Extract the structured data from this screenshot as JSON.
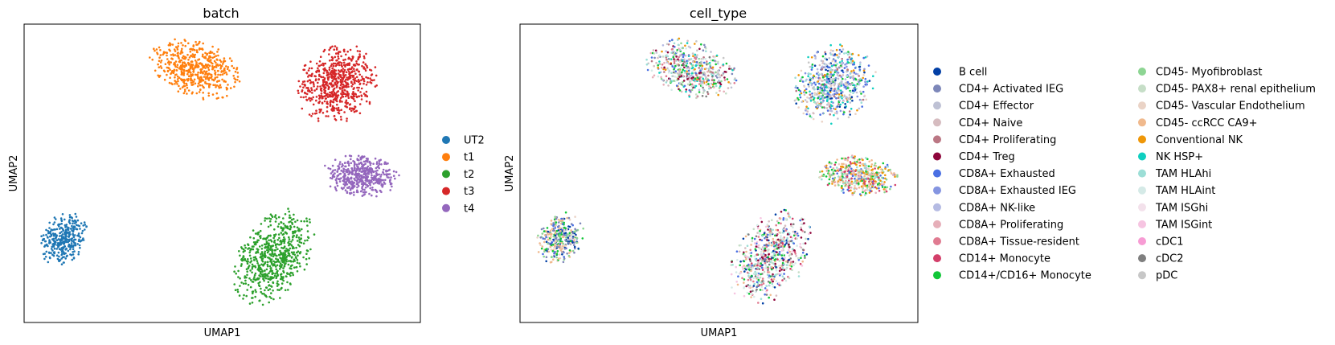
{
  "chart_data": [
    {
      "type": "scatter",
      "title": "batch",
      "xlabel": "UMAP1",
      "ylabel": "UMAP2",
      "xlim": [
        0,
        100
      ],
      "ylim": [
        0,
        100
      ],
      "grid": false,
      "ticks": false,
      "legend_position": "right",
      "series": [
        {
          "name": "UT2",
          "color": "#1f77b4",
          "clusters": [
            {
              "cx": 10,
              "cy": 28,
              "rx": 5,
              "ry": 8,
              "angle": -15,
              "n": 330
            }
          ]
        },
        {
          "name": "t1",
          "color": "#ff7f0e",
          "clusters": [
            {
              "cx": 43,
              "cy": 85,
              "rx": 11,
              "ry": 8,
              "angle": -35,
              "n": 520
            }
          ]
        },
        {
          "name": "t2",
          "color": "#2ca02c",
          "clusters": [
            {
              "cx": 63,
              "cy": 22,
              "rx": 8,
              "ry": 15,
              "angle": -20,
              "n": 650
            }
          ]
        },
        {
          "name": "t3",
          "color": "#d62728",
          "clusters": [
            {
              "cx": 79,
              "cy": 80,
              "rx": 9,
              "ry": 12,
              "angle": -15,
              "n": 650
            }
          ]
        },
        {
          "name": "t4",
          "color": "#9467bd",
          "clusters": [
            {
              "cx": 85,
              "cy": 49,
              "rx": 9,
              "ry": 6,
              "angle": -10,
              "n": 480
            }
          ]
        }
      ]
    },
    {
      "type": "scatter",
      "title": "cell_type",
      "xlabel": "UMAP1",
      "ylabel": "UMAP2",
      "xlim": [
        0,
        100
      ],
      "ylim": [
        0,
        100
      ],
      "grid": false,
      "ticks": false,
      "legend_position": "right",
      "legend_columns": 2,
      "clusters": [
        {
          "cx": 43,
          "cy": 85,
          "rx": 11,
          "ry": 8,
          "angle": -35,
          "n": 520,
          "mix": [
            "CD4+ Activated IEG",
            "CD4+ Effector",
            "CD4+ Naive",
            "CD4+ Proliferating",
            "CD4+ Treg",
            "CD8A+ Exhausted",
            "CD8A+ NK-like",
            "CD8A+ Proliferating",
            "CD8A+ Tissue-resident",
            "CD14+/CD16+ Monocyte",
            "CD45- Myofibroblast",
            "CD45- PAX8+ renal epithelium",
            "NK HSP+",
            "TAM HLAhi",
            "TAM HLAint",
            "Conventional NK",
            "cDC2",
            "pDC"
          ]
        },
        {
          "cx": 79,
          "cy": 80,
          "rx": 9,
          "ry": 12,
          "angle": -15,
          "n": 650,
          "mix": [
            "CD8A+ Exhausted",
            "CD8A+ Exhausted",
            "CD8A+ Exhausted IEG",
            "CD8A+ NK-like",
            "B cell",
            "CD4+ Naive",
            "CD4+ Proliferating",
            "CD14+/CD16+ Monocyte",
            "NK HSP+",
            "TAM HLAhi",
            "CD45- Vascular Endothelium",
            "Conventional NK",
            "pDC",
            "CD4+ Effector"
          ]
        },
        {
          "cx": 85,
          "cy": 49,
          "rx": 9,
          "ry": 6,
          "angle": -10,
          "n": 480,
          "mix": [
            "Conventional NK",
            "Conventional NK",
            "CD45- ccRCC CA9+",
            "CD45- ccRCC CA9+",
            "CD14+/CD16+ Monocyte",
            "CD45- Myofibroblast",
            "TAM HLAhi",
            "CD14+ Monocyte",
            "CD8A+ Exhausted",
            "CD45- Vascular Endothelium",
            "CD8A+ Proliferating"
          ]
        },
        {
          "cx": 63,
          "cy": 22,
          "rx": 8,
          "ry": 15,
          "angle": -20,
          "n": 650,
          "mix": [
            "TAM HLAhi",
            "TAM HLAhi",
            "TAM HLAint",
            "TAM HLAint",
            "CD45- PAX8+ renal epithelium",
            "CD8A+ Exhausted",
            "CD4+ Treg",
            "CD14+ Monocyte",
            "CD45- ccRCC CA9+",
            "CD4+ Naive",
            "B cell",
            "cDC2",
            "TAM ISGint",
            "CD14+/CD16+ Monocyte",
            "CD8A+ Tissue-resident"
          ]
        },
        {
          "cx": 10,
          "cy": 28,
          "rx": 5,
          "ry": 8,
          "angle": -15,
          "n": 330,
          "mix": [
            "CD45- ccRCC CA9+",
            "CD45- ccRCC CA9+",
            "CD45- Vascular Endothelium",
            "CD8A+ Exhausted",
            "CD4+ Activated IEG",
            "CD14+/CD16+ Monocyte",
            "CD45- Myofibroblast",
            "B cell"
          ]
        }
      ],
      "categories": [
        {
          "name": "B cell",
          "color": "#023fa5"
        },
        {
          "name": "CD4+ Activated IEG",
          "color": "#7d87b9"
        },
        {
          "name": "CD4+ Effector",
          "color": "#bec1d4"
        },
        {
          "name": "CD4+ Naive",
          "color": "#d6bcc0"
        },
        {
          "name": "CD4+ Proliferating",
          "color": "#bb7784"
        },
        {
          "name": "CD4+ Treg",
          "color": "#8e063b"
        },
        {
          "name": "CD8A+ Exhausted",
          "color": "#4a6fe3"
        },
        {
          "name": "CD8A+ Exhausted IEG",
          "color": "#8595e1"
        },
        {
          "name": "CD8A+ NK-like",
          "color": "#b5bbe3"
        },
        {
          "name": "CD8A+ Proliferating",
          "color": "#e6afb9"
        },
        {
          "name": "CD8A+ Tissue-resident",
          "color": "#e07b91"
        },
        {
          "name": "CD14+ Monocyte",
          "color": "#d33f6a"
        },
        {
          "name": "CD14+/CD16+ Monocyte",
          "color": "#11c638"
        },
        {
          "name": "CD45- Myofibroblast",
          "color": "#8dd593"
        },
        {
          "name": "CD45- PAX8+ renal epithelium",
          "color": "#c6dec7"
        },
        {
          "name": "CD45- Vascular Endothelium",
          "color": "#ead3c6"
        },
        {
          "name": "CD45- ccRCC CA9+",
          "color": "#f0b98d"
        },
        {
          "name": "Conventional NK",
          "color": "#ef9708"
        },
        {
          "name": "NK HSP+",
          "color": "#0fcfc0"
        },
        {
          "name": "TAM HLAhi",
          "color": "#9cded6"
        },
        {
          "name": "TAM HLAint",
          "color": "#d5eae7"
        },
        {
          "name": "TAM ISGhi",
          "color": "#f3e1eb"
        },
        {
          "name": "TAM ISGint",
          "color": "#f6c4e1"
        },
        {
          "name": "cDC1",
          "color": "#f79cd4"
        },
        {
          "name": "cDC2",
          "color": "#7f7f7f"
        },
        {
          "name": "pDC",
          "color": "#c7c7c7"
        }
      ]
    }
  ]
}
